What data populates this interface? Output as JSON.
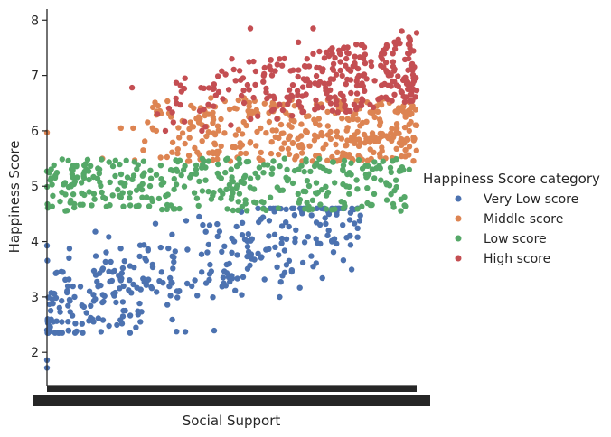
{
  "chart_data": {
    "type": "scatter",
    "title": "",
    "xlabel": "Social Support",
    "ylabel": "Happiness Score",
    "ylim": [
      1.4,
      8.2
    ],
    "yticks": [
      2,
      3,
      4,
      5,
      6,
      7,
      8
    ],
    "x_axis_kind": "categorical (strip/jitter); tick labels overlap into an unreadable band",
    "grid": false,
    "legend": {
      "title": "Happiness Score category",
      "placement": "right",
      "entries": [
        "Very Low score",
        "Middle score",
        "Low score",
        "High score"
      ]
    },
    "series": [
      {
        "name": "Very Low score",
        "color": "#4c72b0",
        "y_range": [
          1.7,
          4.6
        ],
        "trend": "rises with x; concentrated at low Social Support",
        "sample_points": [
          [
            0.0,
            1.72
          ],
          [
            0.0,
            1.86
          ],
          [
            0.0,
            2.4
          ],
          [
            0.01,
            2.75
          ],
          [
            0.02,
            3.06
          ],
          [
            0.04,
            2.55
          ],
          [
            0.08,
            2.38
          ],
          [
            0.1,
            2.82
          ],
          [
            0.15,
            2.9
          ],
          [
            0.2,
            3.3
          ],
          [
            0.26,
            3.33
          ],
          [
            0.31,
            3.45
          ],
          [
            0.4,
            3.3
          ],
          [
            0.5,
            3.8
          ],
          [
            0.6,
            4.1
          ],
          [
            0.72,
            3.55
          ],
          [
            0.82,
            4.1
          ],
          [
            0.84,
            4.08
          ],
          [
            0.8,
            4.3
          ]
        ]
      },
      {
        "name": "Middle score",
        "color": "#dd8452",
        "y_range": [
          5.4,
          6.6
        ],
        "trend": "spans mid-to-high Social Support",
        "sample_points": [
          [
            0.0,
            5.97
          ],
          [
            0.15,
            5.5
          ],
          [
            0.2,
            6.05
          ],
          [
            0.3,
            6.3
          ],
          [
            0.45,
            6.2
          ],
          [
            0.55,
            5.8
          ],
          [
            0.7,
            6.0
          ],
          [
            0.8,
            5.6
          ],
          [
            0.9,
            6.1
          ],
          [
            0.98,
            6.0
          ],
          [
            1.0,
            6.1
          ]
        ]
      },
      {
        "name": "Low score",
        "color": "#55a868",
        "y_range": [
          4.5,
          5.5
        ],
        "trend": "spans most of the Social Support range",
        "sample_points": [
          [
            0.0,
            5.27
          ],
          [
            0.05,
            4.85
          ],
          [
            0.1,
            5.15
          ],
          [
            0.2,
            4.8
          ],
          [
            0.35,
            5.3
          ],
          [
            0.5,
            4.95
          ],
          [
            0.65,
            5.1
          ],
          [
            0.8,
            5.3
          ],
          [
            0.94,
            4.92
          ],
          [
            0.98,
            5.3
          ]
        ]
      },
      {
        "name": "High score",
        "color": "#c44e52",
        "y_range": [
          6.0,
          7.9
        ],
        "trend": "rises with x; concentrated at high Social Support",
        "sample_points": [
          [
            0.23,
            6.78
          ],
          [
            0.35,
            6.5
          ],
          [
            0.5,
            7.3
          ],
          [
            0.55,
            7.85
          ],
          [
            0.68,
            7.6
          ],
          [
            0.72,
            7.85
          ],
          [
            0.85,
            7.55
          ],
          [
            0.96,
            7.8
          ],
          [
            1.0,
            7.77
          ],
          [
            0.98,
            7.4
          ]
        ]
      }
    ]
  }
}
